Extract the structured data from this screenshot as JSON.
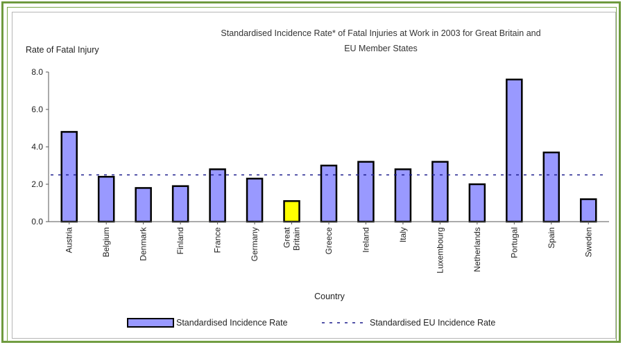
{
  "chart_data": {
    "type": "bar",
    "title": "Standardised Incidence Rate* of Fatal Injuries at Work in 2003 for Great Britain and EU Member States",
    "title_lines": [
      "Standardised Incidence Rate* of Fatal Injuries at Work in 2003 for Great Britain and",
      "EU Member States"
    ],
    "ylabel": "Rate of Fatal Injury",
    "xlabel": "Country",
    "ylim": [
      0,
      8
    ],
    "yticks": [
      "0.0",
      "2.0",
      "4.0",
      "6.0",
      "8.0"
    ],
    "categories": [
      "Austria",
      "Belgium",
      "Denmark",
      "Finland",
      "France",
      "Germany",
      "Great Britain",
      "Greece",
      "Ireland",
      "Italy",
      "Luxembourg",
      "Netherlands",
      "Portugal",
      "Spain",
      "Sweden"
    ],
    "category_lines": [
      [
        "Austria"
      ],
      [
        "Belgium"
      ],
      [
        "Denmark"
      ],
      [
        "Finland"
      ],
      [
        "France"
      ],
      [
        "Germany"
      ],
      [
        "Great",
        "Britain"
      ],
      [
        "Greece"
      ],
      [
        "Ireland"
      ],
      [
        "Italy"
      ],
      [
        "Luxembourg"
      ],
      [
        "Netherlands"
      ],
      [
        "Portugal"
      ],
      [
        "Spain"
      ],
      [
        "Sweden"
      ]
    ],
    "series": [
      {
        "name": "Standardised Incidence Rate",
        "values": [
          4.8,
          2.4,
          1.8,
          1.9,
          2.8,
          2.3,
          1.1,
          3.0,
          3.2,
          2.8,
          3.2,
          2.0,
          7.6,
          3.7,
          1.2
        ]
      }
    ],
    "reference_line": {
      "name": "Standardised EU Incidence Rate",
      "value": 2.5,
      "style": "dotted"
    },
    "highlight_category": "Great Britain",
    "colors": {
      "bar": "#9999ff",
      "highlight": "#ffff00",
      "bar_edge": "#000000",
      "frame": "#6e9a3e"
    },
    "legend": {
      "position": "bottom",
      "entries": [
        "Standardised Incidence Rate",
        "Standardised EU Incidence Rate"
      ]
    },
    "grid": false
  }
}
